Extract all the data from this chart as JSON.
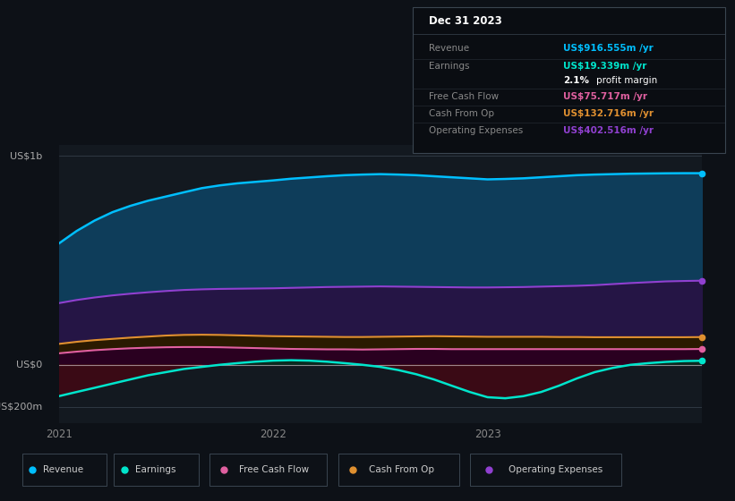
{
  "background_color": "#0d1117",
  "chart_bg_color": "#131920",
  "y1b_label": "US$1b",
  "y0_label": "US$0",
  "ym200_label": "-US$200m",
  "y_min": -280,
  "y_max": 1050,
  "revenue_color": "#00bfff",
  "earnings_color": "#00e5cc",
  "free_cash_flow_color": "#e060a0",
  "cash_from_op_color": "#e09030",
  "operating_expenses_color": "#9040d0",
  "revenue_fill": "#0e3d5a",
  "op_exp_fill": "#251545",
  "cash_op_fill": "#2a1a00",
  "fcf_fill": "#2a0020",
  "earnings_fill_pos": "#0a2a20",
  "earnings_fill_neg": "#3a0a15",
  "table_title": "Dec 31 2023",
  "table_rows": [
    {
      "label": "Revenue",
      "value": "US$916.555m /yr",
      "color": "#00bfff"
    },
    {
      "label": "Earnings",
      "value": "US$19.339m /yr",
      "color": "#00e5cc"
    },
    {
      "label": "",
      "value": "2.1% profit margin",
      "color": "#ffffff",
      "bold_part": "2.1%"
    },
    {
      "label": "Free Cash Flow",
      "value": "US$75.717m /yr",
      "color": "#e060a0"
    },
    {
      "label": "Cash From Op",
      "value": "US$132.716m /yr",
      "color": "#e09030"
    },
    {
      "label": "Operating Expenses",
      "value": "US$402.516m /yr",
      "color": "#9040d0"
    }
  ],
  "legend_items": [
    {
      "label": "Revenue",
      "color": "#00bfff"
    },
    {
      "label": "Earnings",
      "color": "#00e5cc"
    },
    {
      "label": "Free Cash Flow",
      "color": "#e060a0"
    },
    {
      "label": "Cash From Op",
      "color": "#e09030"
    },
    {
      "label": "Operating Expenses",
      "color": "#9040d0"
    }
  ],
  "x_data": [
    0,
    0.083,
    0.167,
    0.25,
    0.333,
    0.417,
    0.5,
    0.583,
    0.667,
    0.75,
    0.833,
    0.917,
    1.0,
    1.083,
    1.167,
    1.25,
    1.333,
    1.417,
    1.5,
    1.583,
    1.667,
    1.75,
    1.833,
    1.917,
    2.0,
    2.083,
    2.167,
    2.25,
    2.333,
    2.417,
    2.5,
    2.583,
    2.667,
    2.75,
    2.833,
    2.917,
    3.0
  ],
  "revenue": [
    580,
    640,
    690,
    730,
    760,
    785,
    805,
    825,
    845,
    858,
    868,
    875,
    882,
    890,
    896,
    902,
    907,
    910,
    912,
    910,
    907,
    902,
    897,
    892,
    887,
    889,
    892,
    897,
    902,
    907,
    910,
    912,
    914,
    915,
    916,
    916.5,
    916.555
  ],
  "operating_expenses": [
    295,
    310,
    322,
    332,
    340,
    347,
    353,
    358,
    361,
    363,
    364,
    365,
    366,
    368,
    370,
    372,
    373,
    374,
    375,
    374,
    373,
    372,
    371,
    370,
    370,
    371,
    372,
    374,
    376,
    378,
    381,
    386,
    391,
    395,
    399,
    401,
    402.516
  ],
  "cash_from_op": [
    100,
    110,
    118,
    124,
    130,
    135,
    140,
    143,
    144,
    143,
    141,
    139,
    137,
    136,
    135,
    134,
    133,
    133,
    134,
    135,
    136,
    137,
    136,
    135,
    134,
    134,
    134,
    134,
    133,
    133,
    132,
    132,
    132,
    132,
    132,
    132,
    132.716
  ],
  "free_cash_flow": [
    55,
    63,
    70,
    75,
    79,
    82,
    84,
    85,
    85,
    84,
    82,
    80,
    78,
    76,
    75,
    74,
    74,
    73,
    74,
    75,
    76,
    76,
    75,
    75,
    75,
    75,
    75,
    75,
    75,
    75,
    75,
    75,
    75,
    75,
    75,
    75,
    75.717
  ],
  "earnings": [
    -150,
    -130,
    -110,
    -90,
    -70,
    -50,
    -35,
    -20,
    -10,
    0,
    8,
    15,
    20,
    22,
    20,
    15,
    8,
    0,
    -10,
    -25,
    -45,
    -70,
    -100,
    -130,
    -155,
    -160,
    -150,
    -130,
    -100,
    -65,
    -35,
    -15,
    0,
    8,
    14,
    18,
    19.339
  ]
}
